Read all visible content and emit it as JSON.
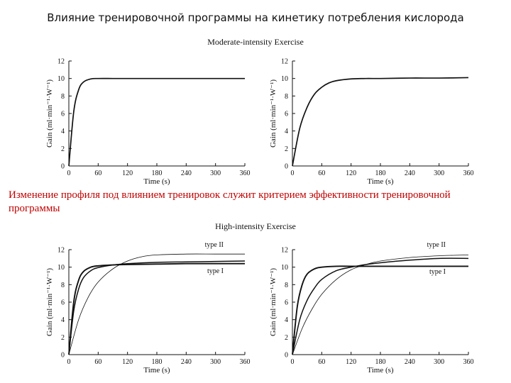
{
  "slide": {
    "title": "Влияние тренировочной программы на кинетику потребления кислорода",
    "section_moderate": "Moderate-intensity Exercise",
    "section_high": "High-intensity Exercise",
    "caption": "Изменение профиля под влиянием тренировок служит критерием эффективности тренировочной программы"
  },
  "chart_data": [
    {
      "type": "line",
      "xlabel": "Time (s)",
      "ylabel": "Gain (ml·min⁻¹·W⁻¹)",
      "xlim": [
        0,
        360
      ],
      "ylim": [
        0,
        12
      ],
      "xticks": [
        0,
        60,
        120,
        180,
        240,
        300,
        360
      ],
      "yticks": [
        0,
        2,
        4,
        6,
        8,
        10,
        12
      ],
      "grid": false,
      "series": [
        {
          "x": [
            0,
            10,
            20,
            30,
            45,
            60,
            90,
            120,
            180,
            240,
            300,
            360
          ],
          "y": [
            0,
            6.2,
            8.7,
            9.6,
            9.95,
            10.0,
            10.0,
            10.0,
            10.0,
            10.0,
            10.0,
            10.0
          ]
        }
      ],
      "annotations": []
    },
    {
      "type": "line",
      "xlabel": "Time (s)",
      "ylabel": "Gain (ml·min⁻¹·W⁻¹)",
      "xlim": [
        0,
        360
      ],
      "ylim": [
        0,
        12
      ],
      "xticks": [
        0,
        60,
        120,
        180,
        240,
        300,
        360
      ],
      "yticks": [
        0,
        2,
        4,
        6,
        8,
        10,
        12
      ],
      "grid": false,
      "series": [
        {
          "x": [
            0,
            15,
            30,
            45,
            60,
            75,
            90,
            120,
            150,
            180,
            240,
            300,
            360
          ],
          "y": [
            0,
            4.3,
            6.7,
            8.2,
            9.0,
            9.5,
            9.75,
            9.95,
            10.0,
            10.0,
            10.05,
            10.05,
            10.1
          ]
        }
      ],
      "annotations": []
    },
    {
      "type": "line",
      "xlabel": "Time (s)",
      "ylabel": "Gain (ml·min⁻¹·W⁻¹)",
      "xlim": [
        0,
        360
      ],
      "ylim": [
        0,
        12
      ],
      "xticks": [
        0,
        60,
        120,
        180,
        240,
        300,
        360
      ],
      "yticks": [
        0,
        2,
        4,
        6,
        8,
        10,
        12
      ],
      "grid": false,
      "series": [
        {
          "x": [
            0,
            10,
            20,
            30,
            45,
            60,
            90,
            120,
            180,
            240,
            300,
            360
          ],
          "y": [
            0,
            6.0,
            8.5,
            9.5,
            10.0,
            10.15,
            10.25,
            10.3,
            10.35,
            10.4,
            10.4,
            10.4
          ]
        },
        {
          "x": [
            0,
            10,
            20,
            30,
            45,
            60,
            90,
            120,
            180,
            240,
            300,
            360
          ],
          "y": [
            0,
            5.0,
            7.5,
            8.8,
            9.6,
            9.95,
            10.25,
            10.4,
            10.55,
            10.6,
            10.65,
            10.7
          ]
        },
        {
          "x": [
            0,
            20,
            40,
            60,
            90,
            120,
            150,
            180,
            240,
            300,
            360
          ],
          "y": [
            0,
            4.0,
            6.6,
            8.3,
            9.8,
            10.7,
            11.2,
            11.4,
            11.5,
            11.5,
            11.5
          ]
        }
      ],
      "annotations": [
        "type II",
        "type I"
      ]
    },
    {
      "type": "line",
      "xlabel": "Time (s)",
      "ylabel": "Gain (ml·min⁻¹·W⁻¹)",
      "xlim": [
        0,
        360
      ],
      "ylim": [
        0,
        12
      ],
      "xticks": [
        0,
        60,
        120,
        180,
        240,
        300,
        360
      ],
      "yticks": [
        0,
        2,
        4,
        6,
        8,
        10,
        12
      ],
      "grid": false,
      "series": [
        {
          "x": [
            0,
            10,
            20,
            30,
            45,
            60,
            90,
            120,
            180,
            240,
            300,
            360
          ],
          "y": [
            0,
            5.5,
            8.0,
            9.2,
            9.8,
            10.0,
            10.1,
            10.1,
            10.1,
            10.1,
            10.1,
            10.1
          ]
        },
        {
          "x": [
            0,
            15,
            30,
            45,
            60,
            90,
            120,
            150,
            180,
            240,
            300,
            360
          ],
          "y": [
            0,
            4.0,
            6.2,
            7.6,
            8.6,
            9.6,
            10.0,
            10.3,
            10.5,
            10.8,
            11.0,
            11.0
          ]
        },
        {
          "x": [
            0,
            20,
            40,
            60,
            90,
            120,
            150,
            180,
            240,
            300,
            360
          ],
          "y": [
            0,
            3.0,
            5.2,
            6.9,
            8.6,
            9.7,
            10.3,
            10.7,
            11.1,
            11.3,
            11.4
          ]
        }
      ],
      "annotations": [
        "type II",
        "type I"
      ]
    }
  ]
}
